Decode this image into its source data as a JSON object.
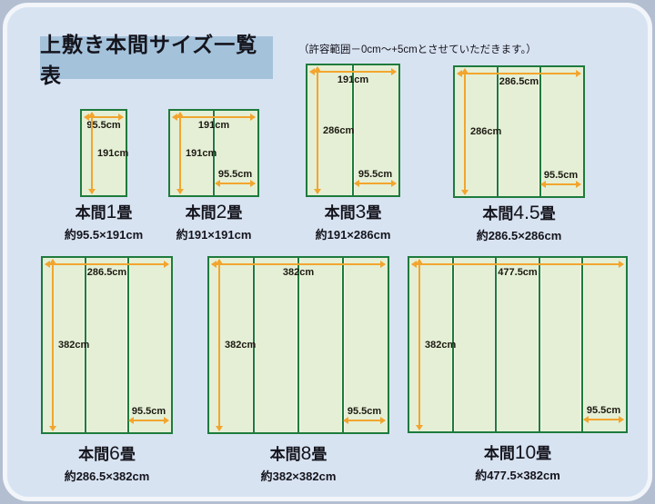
{
  "page": {
    "title": "上敷き本間サイズ一覧表",
    "note": "（許容範囲－0cm～+5cmとさせていただきます。）"
  },
  "colors": {
    "panel_background": "#d8e3f2",
    "outer_background": "#b3bfd1",
    "title_box_background": "#a5c2db",
    "mat_fill": "#e5efd5",
    "mat_border_green": "#1e7b3d",
    "arrow_orange": "#f2a52e"
  },
  "diagrams": [
    {
      "label_prefix": "本間",
      "label_num": "1",
      "label_suffix": "畳",
      "size_caption": "約95.5×191cm",
      "width_arrow_label": "95.5cm",
      "height_arrow_label": "191cm",
      "bottom_arrow_label": null,
      "mat_columns": 1
    },
    {
      "label_prefix": "本間",
      "label_num": "2",
      "label_suffix": "畳",
      "size_caption": "約191×191cm",
      "width_arrow_label": "191cm",
      "height_arrow_label": "191cm",
      "bottom_arrow_label": "95.5cm",
      "mat_columns": 2
    },
    {
      "label_prefix": "本間",
      "label_num": "3",
      "label_suffix": "畳",
      "size_caption": "約191×286cm",
      "width_arrow_label": "191cm",
      "height_arrow_label": "286cm",
      "bottom_arrow_label": "95.5cm",
      "mat_columns": 2
    },
    {
      "label_prefix": "本間",
      "label_num": "4.5",
      "label_suffix": "畳",
      "size_caption": "約286.5×286cm",
      "width_arrow_label": "286.5cm",
      "height_arrow_label": "286cm",
      "bottom_arrow_label": "95.5cm",
      "mat_columns": 3
    },
    {
      "label_prefix": "本間",
      "label_num": "6",
      "label_suffix": "畳",
      "size_caption": "約286.5×382cm",
      "width_arrow_label": "286.5cm",
      "height_arrow_label": "382cm",
      "bottom_arrow_label": "95.5cm",
      "mat_columns": 3
    },
    {
      "label_prefix": "本間",
      "label_num": "8",
      "label_suffix": "畳",
      "size_caption": "約382×382cm",
      "width_arrow_label": "382cm",
      "height_arrow_label": "382cm",
      "bottom_arrow_label": "95.5cm",
      "mat_columns": 4
    },
    {
      "label_prefix": "本間",
      "label_num": "10",
      "label_suffix": "畳",
      "size_caption": "約477.5×382cm",
      "width_arrow_label": "477.5cm",
      "height_arrow_label": "382cm",
      "bottom_arrow_label": "95.5cm",
      "mat_columns": 5
    }
  ]
}
